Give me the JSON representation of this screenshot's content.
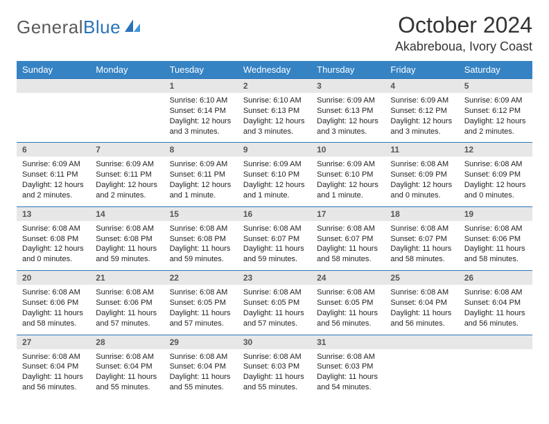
{
  "brand": {
    "part1": "General",
    "part2": "Blue"
  },
  "title": "October 2024",
  "location": "Akabreboua, Ivory Coast",
  "colors": {
    "header_bg": "#3683c4",
    "header_text": "#ffffff",
    "daynum_bg": "#e7e7e7",
    "daynum_text": "#555555",
    "row_border": "#2a73b8",
    "body_text": "#222222",
    "brand_gray": "#5a5a5a",
    "brand_blue": "#2a73b8",
    "page_bg": "#ffffff"
  },
  "fonts": {
    "base": "Arial",
    "month_title_pt": 32,
    "location_pt": 18,
    "dayhead_pt": 13,
    "daynum_pt": 12,
    "body_pt": 11
  },
  "dayNames": [
    "Sunday",
    "Monday",
    "Tuesday",
    "Wednesday",
    "Thursday",
    "Friday",
    "Saturday"
  ],
  "weeks": [
    [
      {
        "n": "",
        "sr": "",
        "ss": "",
        "dl": ""
      },
      {
        "n": "",
        "sr": "",
        "ss": "",
        "dl": ""
      },
      {
        "n": "1",
        "sr": "Sunrise: 6:10 AM",
        "ss": "Sunset: 6:14 PM",
        "dl": "Daylight: 12 hours and 3 minutes."
      },
      {
        "n": "2",
        "sr": "Sunrise: 6:10 AM",
        "ss": "Sunset: 6:13 PM",
        "dl": "Daylight: 12 hours and 3 minutes."
      },
      {
        "n": "3",
        "sr": "Sunrise: 6:09 AM",
        "ss": "Sunset: 6:13 PM",
        "dl": "Daylight: 12 hours and 3 minutes."
      },
      {
        "n": "4",
        "sr": "Sunrise: 6:09 AM",
        "ss": "Sunset: 6:12 PM",
        "dl": "Daylight: 12 hours and 3 minutes."
      },
      {
        "n": "5",
        "sr": "Sunrise: 6:09 AM",
        "ss": "Sunset: 6:12 PM",
        "dl": "Daylight: 12 hours and 2 minutes."
      }
    ],
    [
      {
        "n": "6",
        "sr": "Sunrise: 6:09 AM",
        "ss": "Sunset: 6:11 PM",
        "dl": "Daylight: 12 hours and 2 minutes."
      },
      {
        "n": "7",
        "sr": "Sunrise: 6:09 AM",
        "ss": "Sunset: 6:11 PM",
        "dl": "Daylight: 12 hours and 2 minutes."
      },
      {
        "n": "8",
        "sr": "Sunrise: 6:09 AM",
        "ss": "Sunset: 6:11 PM",
        "dl": "Daylight: 12 hours and 1 minute."
      },
      {
        "n": "9",
        "sr": "Sunrise: 6:09 AM",
        "ss": "Sunset: 6:10 PM",
        "dl": "Daylight: 12 hours and 1 minute."
      },
      {
        "n": "10",
        "sr": "Sunrise: 6:09 AM",
        "ss": "Sunset: 6:10 PM",
        "dl": "Daylight: 12 hours and 1 minute."
      },
      {
        "n": "11",
        "sr": "Sunrise: 6:08 AM",
        "ss": "Sunset: 6:09 PM",
        "dl": "Daylight: 12 hours and 0 minutes."
      },
      {
        "n": "12",
        "sr": "Sunrise: 6:08 AM",
        "ss": "Sunset: 6:09 PM",
        "dl": "Daylight: 12 hours and 0 minutes."
      }
    ],
    [
      {
        "n": "13",
        "sr": "Sunrise: 6:08 AM",
        "ss": "Sunset: 6:08 PM",
        "dl": "Daylight: 12 hours and 0 minutes."
      },
      {
        "n": "14",
        "sr": "Sunrise: 6:08 AM",
        "ss": "Sunset: 6:08 PM",
        "dl": "Daylight: 11 hours and 59 minutes."
      },
      {
        "n": "15",
        "sr": "Sunrise: 6:08 AM",
        "ss": "Sunset: 6:08 PM",
        "dl": "Daylight: 11 hours and 59 minutes."
      },
      {
        "n": "16",
        "sr": "Sunrise: 6:08 AM",
        "ss": "Sunset: 6:07 PM",
        "dl": "Daylight: 11 hours and 59 minutes."
      },
      {
        "n": "17",
        "sr": "Sunrise: 6:08 AM",
        "ss": "Sunset: 6:07 PM",
        "dl": "Daylight: 11 hours and 58 minutes."
      },
      {
        "n": "18",
        "sr": "Sunrise: 6:08 AM",
        "ss": "Sunset: 6:07 PM",
        "dl": "Daylight: 11 hours and 58 minutes."
      },
      {
        "n": "19",
        "sr": "Sunrise: 6:08 AM",
        "ss": "Sunset: 6:06 PM",
        "dl": "Daylight: 11 hours and 58 minutes."
      }
    ],
    [
      {
        "n": "20",
        "sr": "Sunrise: 6:08 AM",
        "ss": "Sunset: 6:06 PM",
        "dl": "Daylight: 11 hours and 58 minutes."
      },
      {
        "n": "21",
        "sr": "Sunrise: 6:08 AM",
        "ss": "Sunset: 6:06 PM",
        "dl": "Daylight: 11 hours and 57 minutes."
      },
      {
        "n": "22",
        "sr": "Sunrise: 6:08 AM",
        "ss": "Sunset: 6:05 PM",
        "dl": "Daylight: 11 hours and 57 minutes."
      },
      {
        "n": "23",
        "sr": "Sunrise: 6:08 AM",
        "ss": "Sunset: 6:05 PM",
        "dl": "Daylight: 11 hours and 57 minutes."
      },
      {
        "n": "24",
        "sr": "Sunrise: 6:08 AM",
        "ss": "Sunset: 6:05 PM",
        "dl": "Daylight: 11 hours and 56 minutes."
      },
      {
        "n": "25",
        "sr": "Sunrise: 6:08 AM",
        "ss": "Sunset: 6:04 PM",
        "dl": "Daylight: 11 hours and 56 minutes."
      },
      {
        "n": "26",
        "sr": "Sunrise: 6:08 AM",
        "ss": "Sunset: 6:04 PM",
        "dl": "Daylight: 11 hours and 56 minutes."
      }
    ],
    [
      {
        "n": "27",
        "sr": "Sunrise: 6:08 AM",
        "ss": "Sunset: 6:04 PM",
        "dl": "Daylight: 11 hours and 56 minutes."
      },
      {
        "n": "28",
        "sr": "Sunrise: 6:08 AM",
        "ss": "Sunset: 6:04 PM",
        "dl": "Daylight: 11 hours and 55 minutes."
      },
      {
        "n": "29",
        "sr": "Sunrise: 6:08 AM",
        "ss": "Sunset: 6:04 PM",
        "dl": "Daylight: 11 hours and 55 minutes."
      },
      {
        "n": "30",
        "sr": "Sunrise: 6:08 AM",
        "ss": "Sunset: 6:03 PM",
        "dl": "Daylight: 11 hours and 55 minutes."
      },
      {
        "n": "31",
        "sr": "Sunrise: 6:08 AM",
        "ss": "Sunset: 6:03 PM",
        "dl": "Daylight: 11 hours and 54 minutes."
      },
      {
        "n": "",
        "sr": "",
        "ss": "",
        "dl": ""
      },
      {
        "n": "",
        "sr": "",
        "ss": "",
        "dl": ""
      }
    ]
  ]
}
